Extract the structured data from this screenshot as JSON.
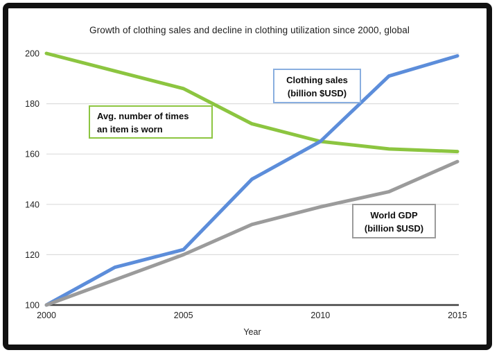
{
  "colors": {
    "frame": "#111111",
    "grid": "#DCDCDC",
    "axis": "#3F3F3F",
    "avg_worn_line": "#8CC540",
    "clothing_sales_line": "#5C8DDA",
    "world_gdp_line": "#9B9B9B",
    "clothing_sales_box_border": "#89AEDF"
  },
  "legend": {
    "avg_worn": {
      "line1": "Avg. number of times",
      "line2": "an item is worn"
    },
    "clothing_sales": {
      "line1": "Clothing sales",
      "line2": "(billion $USD)"
    },
    "world_gdp": {
      "line1": "World GDP",
      "line2": "(billion $USD)"
    }
  },
  "chart_data": {
    "type": "line",
    "title": "Growth of clothing sales and decline in clothing utilization since 2000, global",
    "xlabel": "Year",
    "ylabel": "",
    "x": [
      2000,
      2002.5,
      2005,
      2007.5,
      2010,
      2012.5,
      2015
    ],
    "series": [
      {
        "id": "avg-worn",
        "name": "Avg. number of times an item is worn",
        "color": "#8CC540",
        "box_border": "#8CC540",
        "values": [
          200,
          193,
          186,
          172,
          165,
          162,
          161
        ]
      },
      {
        "id": "clothing-sales",
        "name": "Clothing sales (billion $USD)",
        "color": "#5C8DDA",
        "box_border": "#89AEDF",
        "values": [
          100,
          115,
          122,
          150,
          165,
          191,
          199
        ]
      },
      {
        "id": "world-gdp",
        "name": "World GDP (billion $USD)",
        "color": "#9B9B9B",
        "box_border": "#9B9B9B",
        "values": [
          100,
          110,
          120,
          132,
          139,
          145,
          157
        ]
      }
    ],
    "x_ticks": [
      2000,
      2005,
      2010,
      2015
    ],
    "y_ticks": [
      100,
      120,
      140,
      160,
      180,
      200
    ],
    "xlim": [
      2000,
      2015
    ],
    "ylim": [
      100,
      200
    ],
    "grid": "horizontal-only",
    "legend_position": "boxed labels inside plot area"
  }
}
